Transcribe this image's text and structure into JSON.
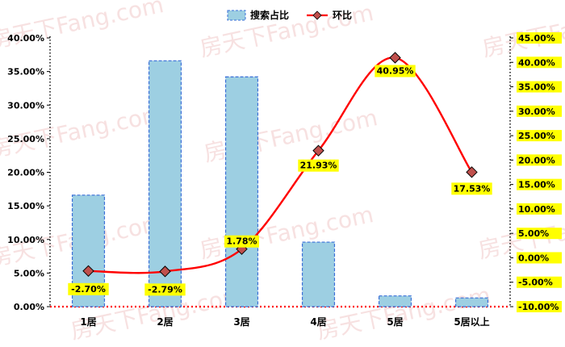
{
  "chart_data": {
    "type": "bar+line",
    "categories": [
      "1居",
      "2居",
      "3居",
      "4居",
      "5居",
      "5居以上"
    ],
    "series": [
      {
        "name": "搜索占比",
        "type": "bar",
        "axis": "left",
        "values": [
          16.6,
          36.6,
          34.2,
          9.6,
          1.6,
          1.3
        ]
      },
      {
        "name": "环比",
        "type": "line",
        "axis": "right",
        "values": [
          -2.7,
          -2.79,
          1.78,
          21.93,
          40.95,
          17.53
        ],
        "labels": [
          "-2.70%",
          "-2.79%",
          "1.78%",
          "21.93%",
          "40.95%",
          "17.53%"
        ]
      }
    ],
    "left_axis": {
      "ylim": [
        0,
        40
      ],
      "step": 5,
      "tick_labels": [
        "0.00%",
        "5.00%",
        "10.00%",
        "15.00%",
        "20.00%",
        "25.00%",
        "30.00%",
        "35.00%",
        "40.00%"
      ]
    },
    "right_axis": {
      "ylim": [
        -10,
        45
      ],
      "step": 5,
      "tick_labels": [
        "-10.00%",
        "-5.00%",
        "0.00%",
        "5.00%",
        "10.00%",
        "15.00%",
        "20.00%",
        "25.00%",
        "30.00%",
        "35.00%",
        "40.00%",
        "45.00%"
      ]
    },
    "legend": {
      "position": "top-center",
      "items": [
        "搜索占比",
        "环比"
      ]
    },
    "watermark": "房天下Fang.com",
    "colors": {
      "bar_fill": "#9dcfe2",
      "bar_border": "#3a6fd8",
      "line": "#ff0000",
      "marker": "#c0504d",
      "label_bg": "#ffff00",
      "axis_dotted": "#000000",
      "baseline": "#ff0000"
    },
    "grid": false
  }
}
